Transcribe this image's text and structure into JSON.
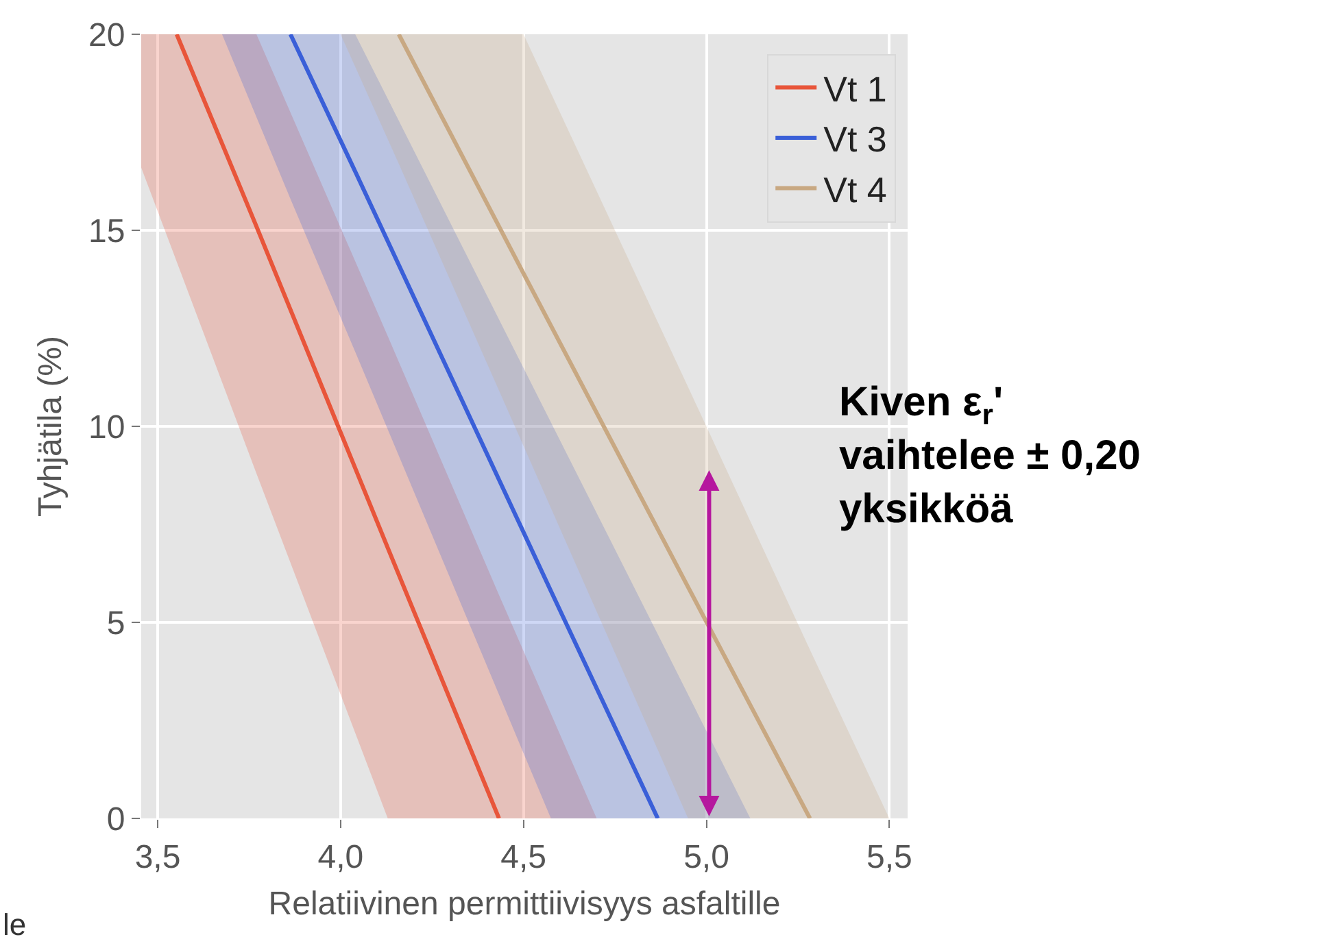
{
  "chart_data": {
    "type": "line",
    "xlabel": "Relatiivinen permittiivisyys asfaltille",
    "ylabel": "Tyhjätila (%)",
    "xlim": [
      3.455,
      5.55
    ],
    "ylim": [
      0,
      20
    ],
    "xticks": [
      {
        "value": 3.5,
        "label": "3,5"
      },
      {
        "value": 4.0,
        "label": "4,0"
      },
      {
        "value": 4.5,
        "label": "4,5"
      },
      {
        "value": 5.0,
        "label": "5,0"
      },
      {
        "value": 5.5,
        "label": "5,5"
      }
    ],
    "yticks": [
      0,
      5,
      10,
      15,
      20
    ],
    "grid": true,
    "legend": "top right",
    "series": [
      {
        "name": "Vt 1",
        "color": "#e8553a",
        "x": [
          3.455,
          3.552,
          3.77,
          4.129,
          4.433,
          4.7
        ],
        "values": [
          null,
          20,
          15.1,
          6.9,
          0,
          null
        ],
        "lower": [
          16.6,
          14.2,
          8.8,
          0,
          0,
          0
        ],
        "upper": [
          20,
          20,
          20,
          12.3,
          5.7,
          0
        ]
      },
      {
        "name": "Vt 3",
        "color": "#3a5fd8",
        "x": [
          3.676,
          3.863,
          4.04,
          4.575,
          4.867,
          5.12
        ],
        "values": [
          null,
          20,
          16.5,
          5.8,
          0,
          null
        ],
        "lower": [
          20,
          15.8,
          11.9,
          0,
          0,
          0
        ],
        "upper": [
          20,
          20,
          20,
          10.1,
          4.7,
          0
        ]
      },
      {
        "name": "Vt 4",
        "color": "#c8a882",
        "x": [
          4.0,
          4.159,
          4.5,
          4.95,
          5.283,
          5.5
        ],
        "values": [
          null,
          20,
          13.9,
          5.9,
          0,
          null
        ],
        "lower": [
          20,
          16.7,
          9.5,
          0,
          0,
          0
        ],
        "upper": [
          20,
          20,
          20,
          11.0,
          4.3,
          0
        ]
      }
    ],
    "annotations": [
      "Kiven ε$_{r}$'\nvaihtelee ± 0,20\nyksikköä",
      "le"
    ]
  }
}
